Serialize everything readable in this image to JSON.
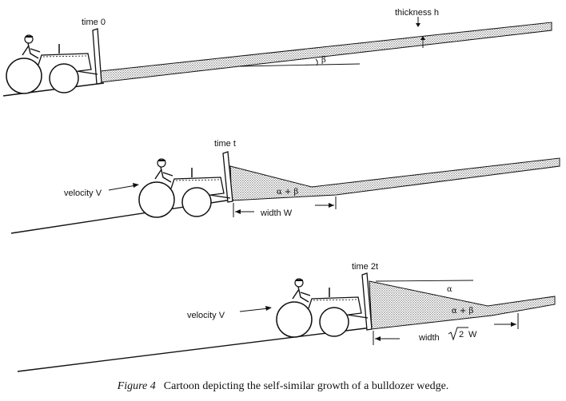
{
  "panels": [
    {
      "time_label": "time 0",
      "thickness_label": "thickness h",
      "angle_label": "β"
    },
    {
      "time_label": "time t",
      "velocity_label": "velocity V",
      "angle_label": "α + β",
      "width_label": "width W"
    },
    {
      "time_label": "time 2t",
      "velocity_label": "velocity V",
      "angle_alpha": "α",
      "angle_label": "α + β",
      "width_label": "width",
      "width_sqrt": "2",
      "width_suffix": "W"
    }
  ],
  "caption": {
    "figure_label": "Figure 4",
    "text": "Cartoon depicting the self-similar growth of a bulldozer wedge."
  },
  "colors": {
    "ink": "#111111",
    "stipple": "#9a9a9a",
    "paper": "#ffffff"
  }
}
